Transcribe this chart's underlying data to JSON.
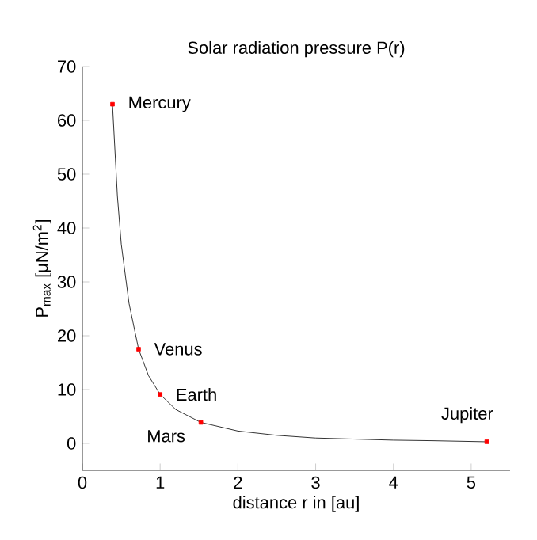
{
  "chart_data": {
    "type": "line",
    "title": "Solar radiation pressure P(r)",
    "xlabel": "distance r in [au]",
    "ylabel": "P$_{max}$ [μN/m$^{2}$]",
    "xlim": [
      0,
      5.5
    ],
    "ylim": [
      -5,
      70
    ],
    "xticks": [
      0,
      1,
      2,
      3,
      4,
      5
    ],
    "yticks": [
      0,
      10,
      20,
      30,
      40,
      50,
      60,
      70
    ],
    "grid": false,
    "series": [
      {
        "color": "#000000",
        "marker": "none",
        "x": [
          0.387,
          0.45,
          0.5,
          0.6,
          0.723,
          0.85,
          1.0,
          1.2,
          1.524,
          2.0,
          2.5,
          3.0,
          3.5,
          4.0,
          4.5,
          5.2
        ],
        "values": [
          63,
          46,
          37,
          26,
          17.5,
          12.6,
          9.1,
          6.3,
          3.9,
          2.3,
          1.5,
          1.0,
          0.8,
          0.6,
          0.5,
          0.3
        ]
      },
      {
        "type": "scatter",
        "color": "#ff0000",
        "marker": "square",
        "x": [
          0.387,
          0.723,
          1.0,
          1.524,
          5.2
        ],
        "values": [
          63,
          17.5,
          9.1,
          3.9,
          0.3
        ]
      }
    ],
    "annotations": [
      {
        "text": "Mercury",
        "x": 0.387,
        "y": 63
      },
      {
        "text": "Venus",
        "x": 0.723,
        "y": 17.5
      },
      {
        "text": "Earth",
        "x": 1.0,
        "y": 9.1
      },
      {
        "text": "Mars",
        "x": 1.524,
        "y": 3.9
      },
      {
        "text": "Jupiter",
        "x": 5.2,
        "y": 0.3
      }
    ]
  }
}
